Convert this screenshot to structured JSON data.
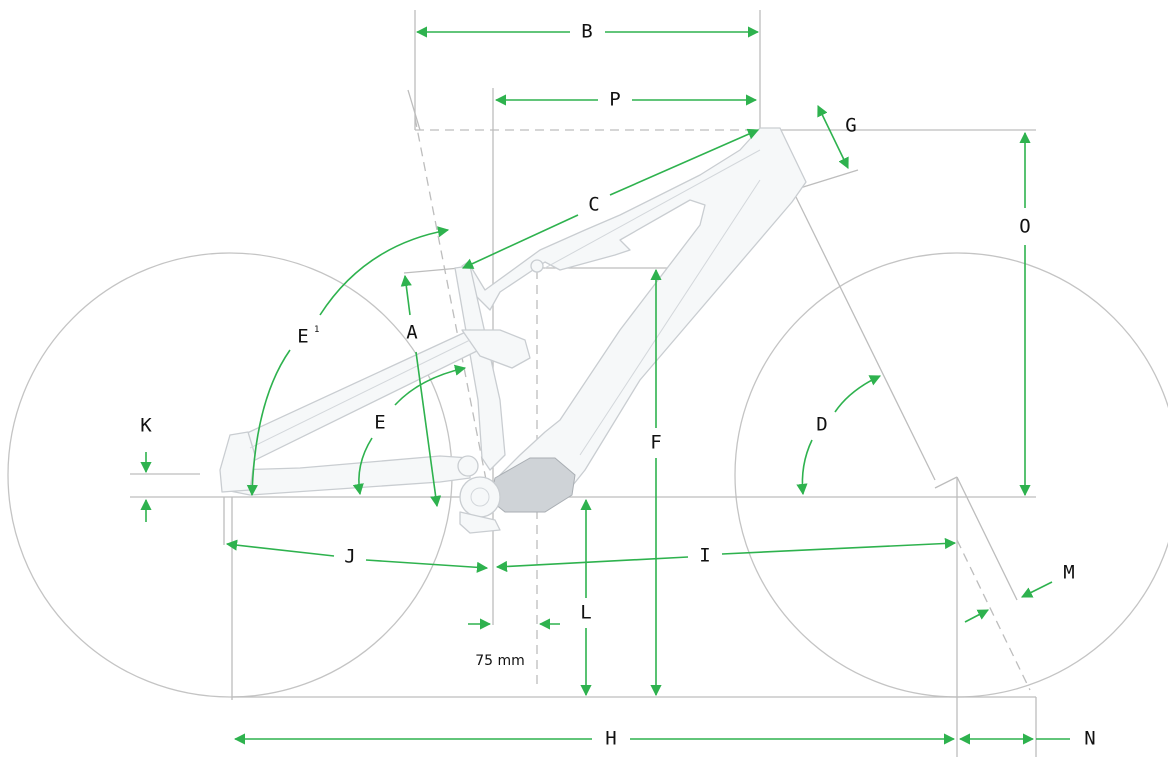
{
  "labels": {
    "A": "A",
    "B": "B",
    "C": "C",
    "D": "D",
    "E": "E",
    "E1": "E",
    "E1_sup": "1",
    "F": "F",
    "G": "G",
    "H": "H",
    "I": "I",
    "J": "J",
    "K": "K",
    "L": "L",
    "M": "M",
    "N": "N",
    "O": "O",
    "P": "P"
  },
  "offset_note": "75 mm",
  "colors": {
    "dimension": "#2eb24e",
    "reference": "#bdbdbd",
    "frame": "#c9cdd1",
    "text": "#111111"
  }
}
